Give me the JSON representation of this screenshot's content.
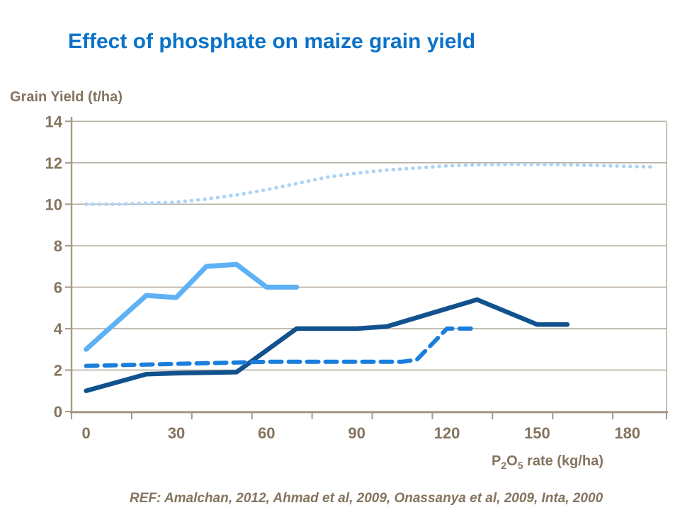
{
  "page": {
    "background": "#FFFFFF"
  },
  "title": {
    "text": "Effect of phosphate on maize grain yield",
    "color": "#0A72C8"
  },
  "y_axis_title": {
    "text": "Grain Yield (t/ha)",
    "color": "#84745E"
  },
  "x_axis_title": {
    "p": "P",
    "sub_2": "2",
    "o": "O",
    "sub_5": "5",
    "rest": " rate (kg/ha)",
    "color": "#84745E"
  },
  "footer": {
    "ref": "REF: Amalchan, 2012, Ahmad et al, 2009, Onassanya et al, 2009, Inta, 2000",
    "color": "#84745E"
  },
  "chart_data": {
    "type": "line",
    "title": "Effect of phosphate on maize grain yield",
    "xlabel": "P2O5 rate (kg/ha)",
    "ylabel": "Grain Yield (t/ha)",
    "xlim": [
      0,
      195
    ],
    "ylim": [
      0,
      14
    ],
    "x_ticks": [
      0,
      30,
      60,
      90,
      120,
      150,
      180
    ],
    "y_ticks": [
      0,
      2,
      4,
      6,
      8,
      10,
      12,
      14
    ],
    "grid": true,
    "legend": "none",
    "axis_color": "#A59A87",
    "grid_color": "#BAB1A4",
    "tick_label_color": "#84745E",
    "series": [
      {
        "name": "pale-blue-dotted",
        "style": "dotted",
        "color": "#ABD3F6",
        "width": 5,
        "points": [
          [
            0,
            10.0
          ],
          [
            10,
            10.0
          ],
          [
            20,
            10.05
          ],
          [
            30,
            10.1
          ],
          [
            40,
            10.25
          ],
          [
            50,
            10.45
          ],
          [
            60,
            10.7
          ],
          [
            70,
            11.0
          ],
          [
            80,
            11.3
          ],
          [
            90,
            11.5
          ],
          [
            100,
            11.65
          ],
          [
            110,
            11.75
          ],
          [
            120,
            11.85
          ],
          [
            130,
            11.9
          ],
          [
            140,
            11.92
          ],
          [
            150,
            11.92
          ],
          [
            160,
            11.9
          ],
          [
            170,
            11.87
          ],
          [
            180,
            11.83
          ],
          [
            188,
            11.8
          ]
        ]
      },
      {
        "name": "light-blue-solid",
        "style": "solid",
        "color": "#5EB1F4",
        "width": 7,
        "points": [
          [
            0,
            3.0
          ],
          [
            20,
            5.6
          ],
          [
            30,
            5.5
          ],
          [
            40,
            7.0
          ],
          [
            50,
            7.1
          ],
          [
            60,
            6.0
          ],
          [
            70,
            6.0
          ]
        ]
      },
      {
        "name": "dark-navy-solid",
        "style": "solid",
        "color": "#11528E",
        "width": 6.5,
        "points": [
          [
            0,
            1.0
          ],
          [
            20,
            1.8
          ],
          [
            30,
            1.85
          ],
          [
            50,
            1.9
          ],
          [
            70,
            4.0
          ],
          [
            90,
            4.0
          ],
          [
            100,
            4.1
          ],
          [
            130,
            5.4
          ],
          [
            150,
            4.2
          ],
          [
            160,
            4.2
          ]
        ]
      },
      {
        "name": "medium-blue-dashed",
        "style": "dashed",
        "color": "#1B7EDC",
        "width": 6,
        "points": [
          [
            0,
            2.2
          ],
          [
            30,
            2.3
          ],
          [
            60,
            2.4
          ],
          [
            105,
            2.4
          ],
          [
            110,
            2.5
          ],
          [
            120,
            4.0
          ],
          [
            130,
            4.0
          ]
        ]
      }
    ]
  }
}
